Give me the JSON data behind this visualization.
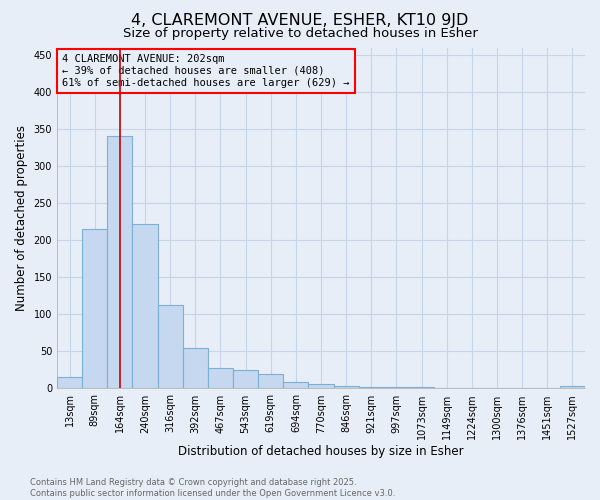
{
  "title_line1": "4, CLAREMONT AVENUE, ESHER, KT10 9JD",
  "title_line2": "Size of property relative to detached houses in Esher",
  "xlabel": "Distribution of detached houses by size in Esher",
  "ylabel": "Number of detached properties",
  "categories": [
    "13sqm",
    "89sqm",
    "164sqm",
    "240sqm",
    "316sqm",
    "392sqm",
    "467sqm",
    "543sqm",
    "619sqm",
    "694sqm",
    "770sqm",
    "846sqm",
    "921sqm",
    "997sqm",
    "1073sqm",
    "1149sqm",
    "1224sqm",
    "1300sqm",
    "1376sqm",
    "1451sqm",
    "1527sqm"
  ],
  "values": [
    16,
    215,
    340,
    222,
    113,
    55,
    27,
    25,
    19,
    9,
    6,
    3,
    2,
    2,
    2,
    1,
    1,
    1,
    1,
    1,
    3
  ],
  "bar_color": "#c5d8f0",
  "bar_edge_color": "#7bafd4",
  "vline_x_index": 2,
  "vline_color": "#cc0000",
  "annotation_line1": "4 CLAREMONT AVENUE: 202sqm",
  "annotation_line2": "← 39% of detached houses are smaller (408)",
  "annotation_line3": "61% of semi-detached houses are larger (629) →",
  "annotation_box_color": "red",
  "annotation_text_color": "black",
  "ylim": [
    0,
    460
  ],
  "yticks": [
    0,
    50,
    100,
    150,
    200,
    250,
    300,
    350,
    400,
    450
  ],
  "grid_color": "#c8d4e8",
  "background_color": "#e8eef8",
  "footer_line1": "Contains HM Land Registry data © Crown copyright and database right 2025.",
  "footer_line2": "Contains public sector information licensed under the Open Government Licence v3.0.",
  "footer_color": "#666666",
  "title_fontsize": 11.5,
  "subtitle_fontsize": 9.5,
  "tick_fontsize": 7,
  "axis_label_fontsize": 8.5,
  "annotation_fontsize": 7.5,
  "footer_fontsize": 6
}
